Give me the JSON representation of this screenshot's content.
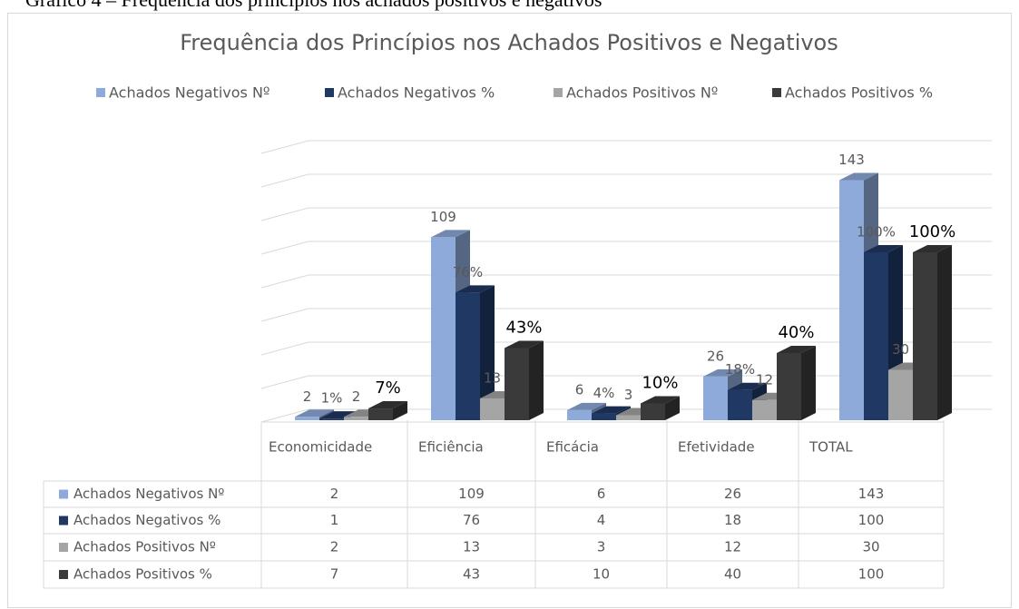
{
  "caption": "Gráfico 4 – Frequência dos princípios nos achados positivos e negativos",
  "chart_data": {
    "type": "bar3d",
    "title": "Frequência dos Princípios nos Achados Positivos e Negativos",
    "categories": [
      "Economicidade",
      "Eficiência",
      "Eficácia",
      "Efetividade",
      "TOTAL"
    ],
    "series": [
      {
        "name": "Achados Negativos Nº",
        "color": "#8eaadb",
        "values": [
          2,
          109,
          6,
          26,
          143
        ]
      },
      {
        "name": "Achados Negativos %",
        "color": "#203864",
        "values": [
          1,
          76,
          4,
          18,
          100
        ],
        "value_labels": [
          "1%",
          "76%",
          "4%",
          "18%",
          "100%"
        ]
      },
      {
        "name": "Achados Positivos Nº",
        "color": "#a5a5a5",
        "values": [
          2,
          13,
          3,
          12,
          30
        ]
      },
      {
        "name": "Achados Positivos %",
        "color": "#3a3a3a",
        "values": [
          7,
          43,
          10,
          40,
          100
        ],
        "value_labels": [
          "7%",
          "43%",
          "10%",
          "40%",
          "100%"
        ]
      }
    ],
    "ylim": [
      0,
      160
    ],
    "yticks": [
      0,
      20,
      40,
      60,
      80,
      100,
      120,
      140,
      160
    ],
    "grid": true,
    "legend": "top",
    "data_table": true
  }
}
